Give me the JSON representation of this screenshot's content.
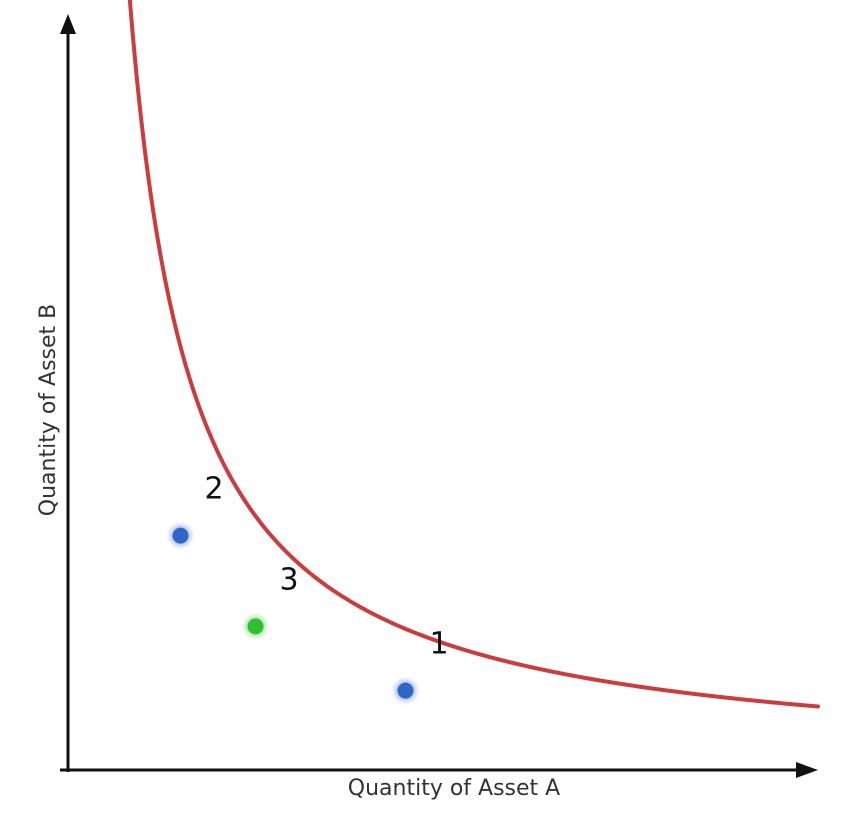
{
  "chart_data": {
    "type": "line",
    "title": "",
    "xlabel": "Quantity of Asset A",
    "ylabel": "Quantity of Asset B",
    "xlim": [
      0,
      10
    ],
    "ylim": [
      0,
      10
    ],
    "ticks": false,
    "grid": false,
    "legend": "none",
    "series": [
      {
        "color": "#cc3c3c",
        "curve": "hyperbola",
        "k": 8.4,
        "x_range": [
          0.47,
          10
        ]
      }
    ],
    "points": [
      {
        "label": "2",
        "x": 1.5,
        "y": 3.1,
        "color": "#2f66c8"
      },
      {
        "label": "3",
        "x": 2.5,
        "y": 1.9,
        "color": "#2fbf2f"
      },
      {
        "label": "1",
        "x": 4.5,
        "y": 1.05,
        "color": "#2f66c8"
      }
    ]
  }
}
